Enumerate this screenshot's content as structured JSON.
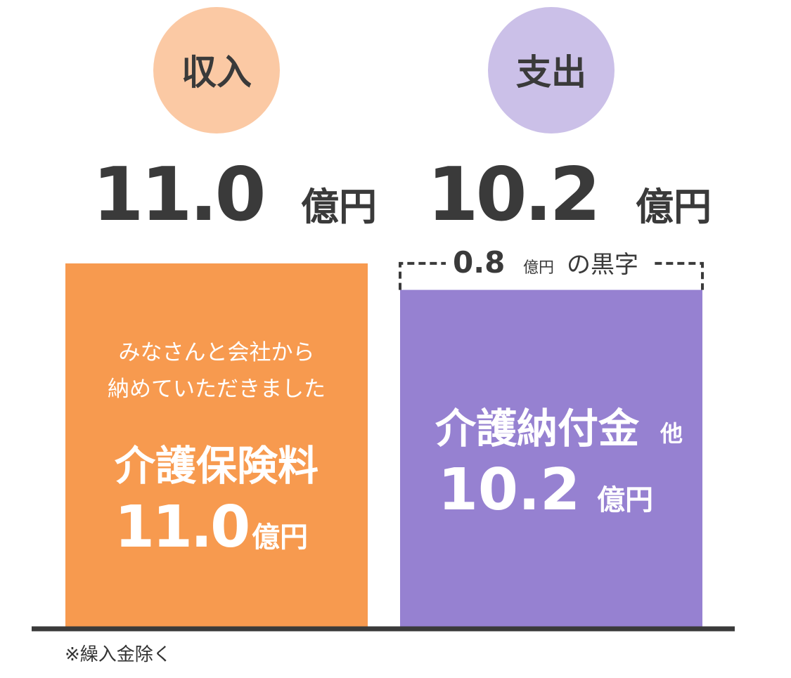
{
  "chart_data": {
    "type": "bar",
    "categories": [
      "収入",
      "支出"
    ],
    "values": [
      11.0,
      10.2
    ],
    "value_labels": [
      "11.0",
      "10.2"
    ],
    "unit": "億円",
    "colors": [
      "#f79a4f",
      "#9681d1"
    ],
    "circle_colors": [
      "#fbc9a4",
      "#cbc0e8"
    ],
    "income_text": {
      "lines": [
        "みなさんと会社から",
        "納めていただきました"
      ],
      "item": "介護保険料"
    },
    "expense_text": {
      "item": "介護納付金",
      "suffix": "他"
    },
    "surplus": {
      "value": 0.8,
      "value_label": "0.8",
      "unit": "億円",
      "text": "の黒字"
    },
    "note": "※繰入金除く"
  }
}
